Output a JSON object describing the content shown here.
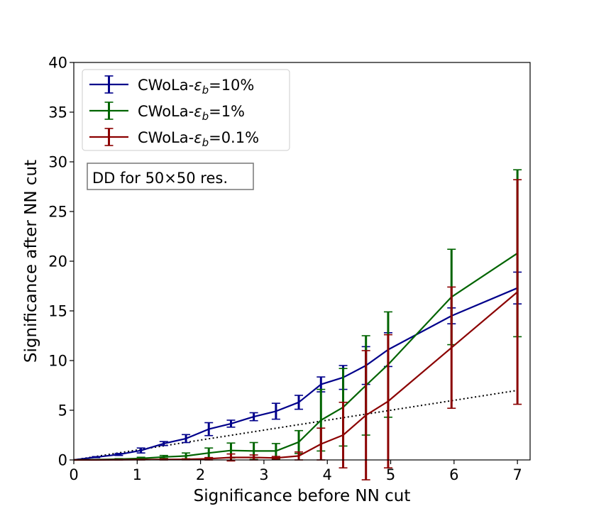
{
  "chart_data": {
    "type": "line",
    "title": "",
    "xlabel": "Significance before NN cut",
    "ylabel": "Significance after NN cut",
    "xlim": [
      0,
      7.2
    ],
    "ylim": [
      0,
      40
    ],
    "xticks": [
      0,
      1,
      2,
      3,
      4,
      5,
      6,
      7
    ],
    "yticks": [
      0,
      5,
      10,
      15,
      20,
      25,
      30,
      35,
      40
    ],
    "xtick_labels": [
      "0",
      "1",
      "2",
      "3",
      "4",
      "5",
      "6",
      "7"
    ],
    "ytick_labels": [
      "0",
      "5",
      "10",
      "15",
      "20",
      "25",
      "30",
      "35",
      "40"
    ],
    "grid": false,
    "legend_position": "top-left",
    "annotation": "DD for 50×50 res.",
    "reference_line": {
      "name": "y = x",
      "style": "dotted",
      "color": "#000000",
      "x": [
        0,
        7
      ],
      "y": [
        0,
        7
      ]
    },
    "series": [
      {
        "name": "CWoLa-εb=10%",
        "legend_prefix": "CWoLa-",
        "legend_suffix": "=10%",
        "color": "#00008b",
        "x": [
          0,
          0.35,
          0.71,
          1.06,
          1.42,
          1.77,
          2.13,
          2.48,
          2.84,
          3.19,
          3.55,
          3.9,
          4.25,
          4.61,
          4.96,
          5.96,
          7.0
        ],
        "y": [
          0,
          0.28,
          0.55,
          0.95,
          1.65,
          2.15,
          3.1,
          3.65,
          4.35,
          4.9,
          5.8,
          7.6,
          8.3,
          9.5,
          11.1,
          14.5,
          17.3
        ],
        "yerr": [
          0,
          0.05,
          0.1,
          0.25,
          0.2,
          0.4,
          0.65,
          0.35,
          0.4,
          0.8,
          0.7,
          0.75,
          1.2,
          1.9,
          1.7,
          0.8,
          1.6
        ]
      },
      {
        "name": "CWoLa-εb=1%",
        "legend_prefix": "CWoLa-",
        "legend_suffix": "=1%",
        "color": "#006400",
        "x": [
          0,
          0.35,
          0.71,
          1.06,
          1.42,
          1.77,
          2.13,
          2.48,
          2.84,
          3.19,
          3.55,
          3.9,
          4.25,
          4.61,
          4.96,
          5.96,
          7.0
        ],
        "y": [
          0,
          0.03,
          0.08,
          0.15,
          0.3,
          0.4,
          0.7,
          0.95,
          0.9,
          0.9,
          1.8,
          4.0,
          5.3,
          7.5,
          9.6,
          16.4,
          20.8
        ],
        "yerr": [
          0,
          0.02,
          0.05,
          0.12,
          0.15,
          0.3,
          0.5,
          0.75,
          0.85,
          0.75,
          1.15,
          3.1,
          3.9,
          5.0,
          5.3,
          4.8,
          8.4
        ]
      },
      {
        "name": "CWoLa-εb=0.1%",
        "legend_prefix": "CWoLa-",
        "legend_suffix": "=0.1%",
        "color": "#8b0000",
        "x": [
          0,
          0.35,
          0.71,
          1.06,
          1.42,
          1.77,
          2.13,
          2.48,
          2.84,
          3.19,
          3.55,
          3.9,
          4.25,
          4.61,
          4.96,
          5.96,
          7.0
        ],
        "y": [
          0,
          0.0,
          0.02,
          0.03,
          0.05,
          0.06,
          0.12,
          0.25,
          0.25,
          0.2,
          0.4,
          1.6,
          2.5,
          4.5,
          5.9,
          11.3,
          16.9
        ],
        "yerr": [
          0,
          0.0,
          0.02,
          0.03,
          0.05,
          0.05,
          0.12,
          0.35,
          0.25,
          0.15,
          0.4,
          1.6,
          3.3,
          6.5,
          6.7,
          6.1,
          11.3
        ]
      }
    ]
  }
}
